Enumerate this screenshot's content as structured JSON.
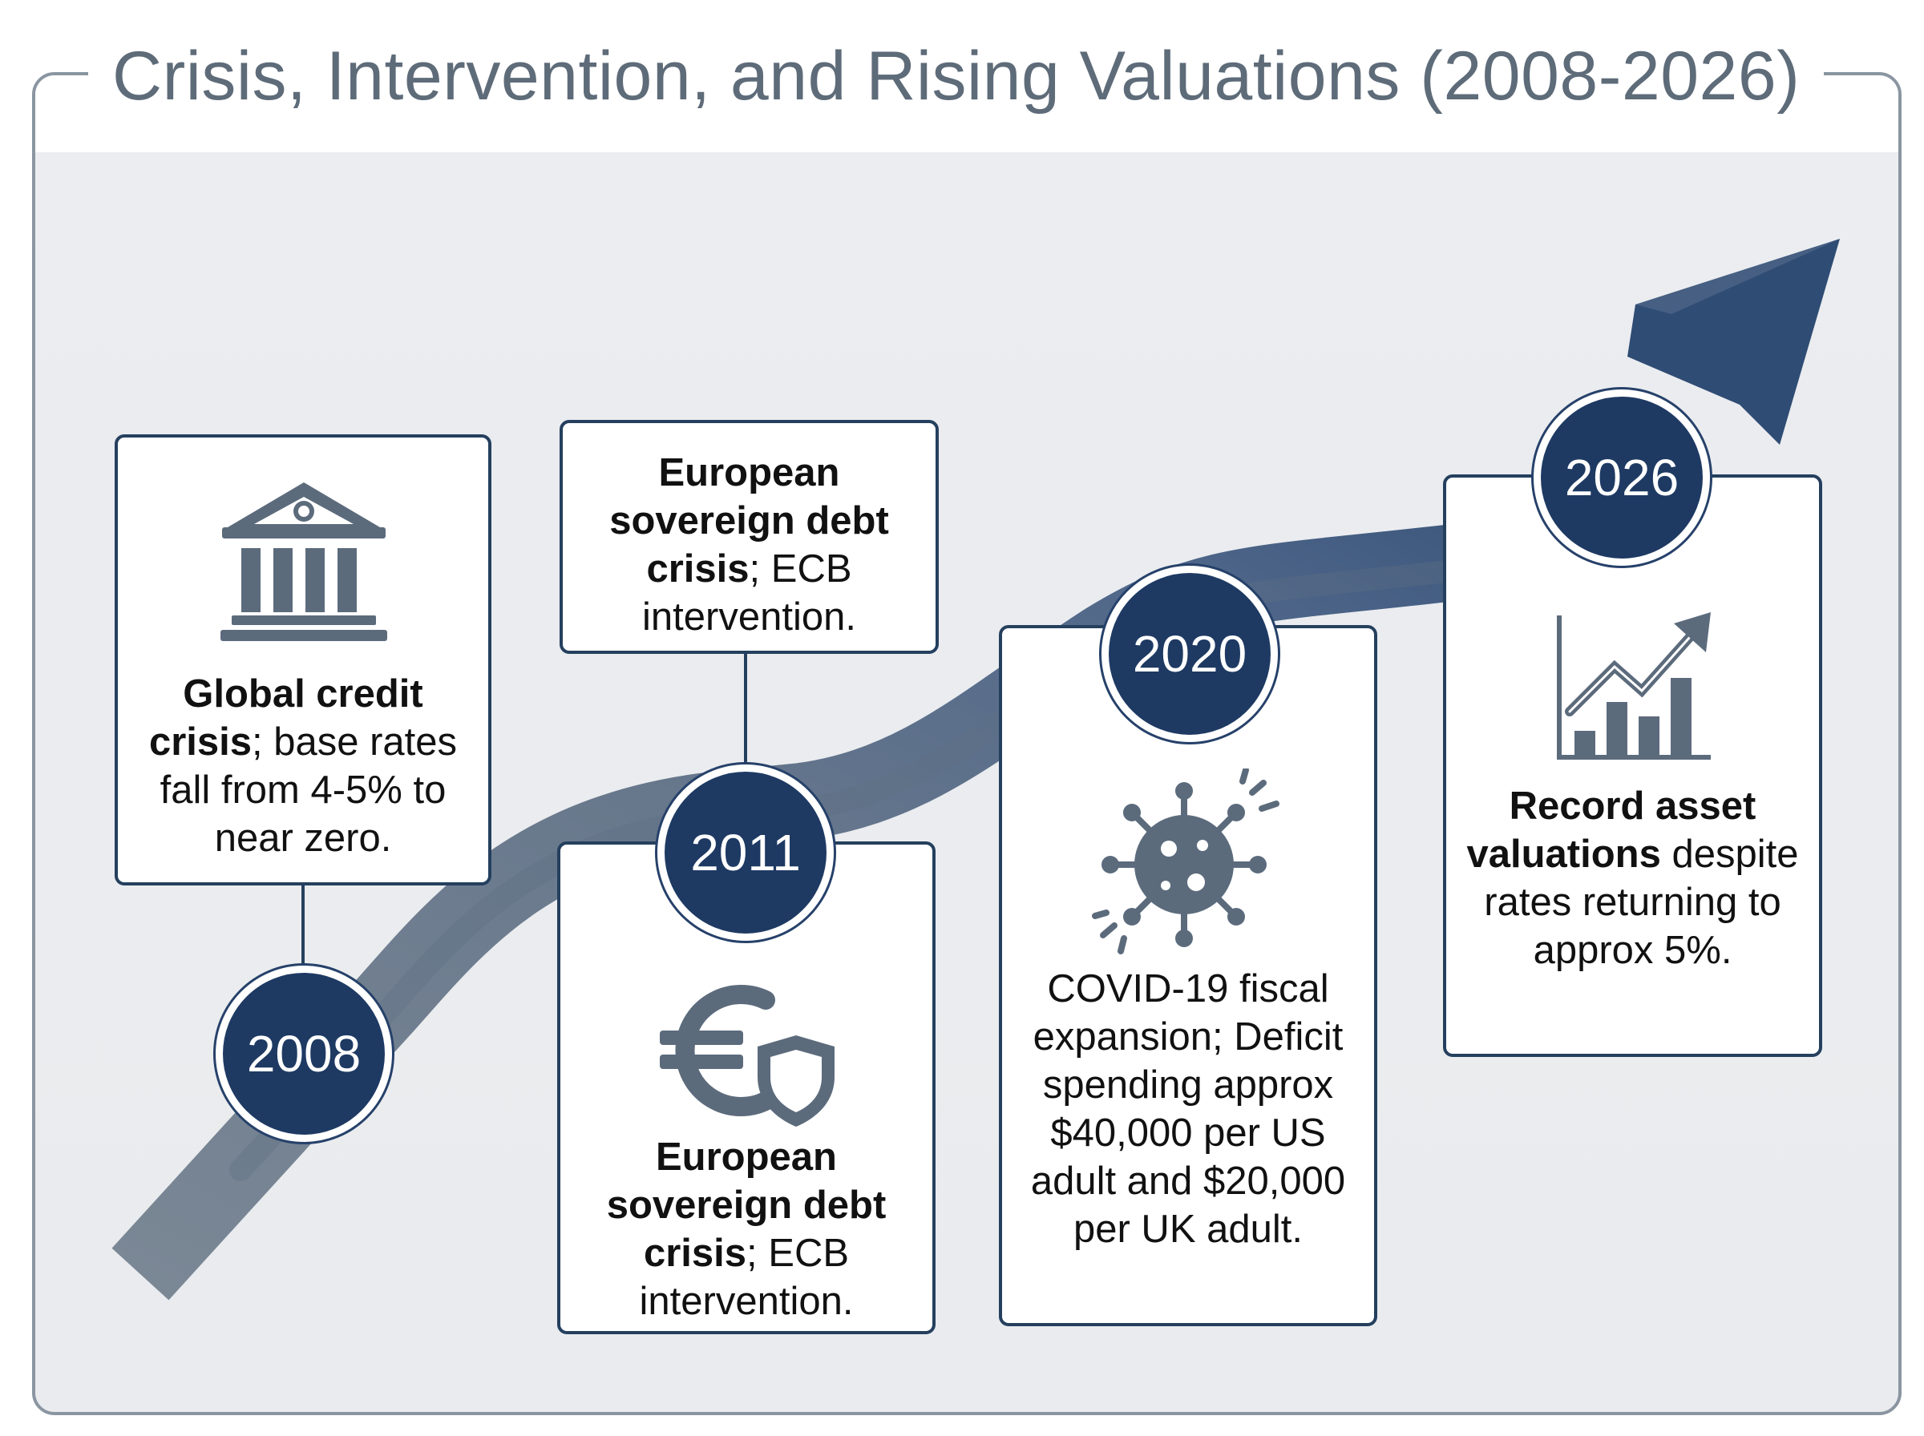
{
  "title": "Crisis, Intervention, and Rising Valuations (2008-2026)",
  "milestones": [
    {
      "year": "2008",
      "bold": "Global credit crisis",
      "text": "; base rates fall from 4-5% to near zero.",
      "icon": "bank-icon"
    },
    {
      "year": "2011",
      "top_bold": "European sovereign debt crisis",
      "top_text": "; ECB intervention.",
      "bold": "European sovereign debt crisis",
      "text": "; ECB intervention.",
      "icon": "euro-shield-icon"
    },
    {
      "year": "2020",
      "bold": "",
      "text": "COVID-19 fiscal expansion; Deficit spending approx $40,000 per US adult and $20,000 per UK adult.",
      "icon": "virus-icon"
    },
    {
      "year": "2026",
      "bold": "Record asset valuations",
      "text": " despite rates returning to approx 5%.",
      "icon": "rising-chart-icon"
    }
  ],
  "colors": {
    "navy": "#1e3a63",
    "arrow_light": "#7a8795",
    "arrow_dark": "#3d5678",
    "card_border": "#25405e",
    "title": "#5e6b79",
    "background": "#eaecef"
  }
}
